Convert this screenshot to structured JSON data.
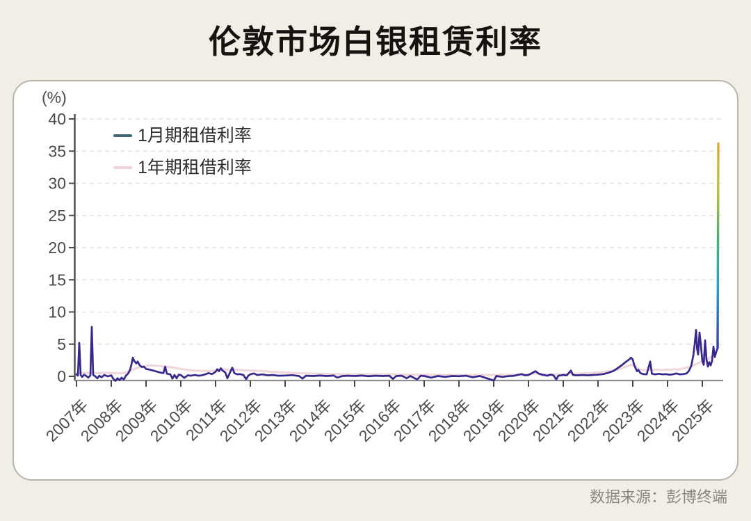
{
  "page": {
    "title": "伦敦市场白银租赁利率",
    "source_note": "数据来源：彭博终端"
  },
  "chart_data": {
    "type": "line",
    "title": "伦敦市场白银租赁利率",
    "xlabel": "",
    "ylabel": "(%)",
    "ylim": [
      -0.65,
      41.4
    ],
    "xlim": [
      2006.95,
      2025.6
    ],
    "grid": "horizontal-dashed",
    "legend_position": "top-left-inside",
    "y_ticks": [
      0,
      5,
      10,
      15,
      20,
      25,
      30,
      35,
      40
    ],
    "x_ticks": [
      "2007年",
      "2008年",
      "2009年",
      "2010年",
      "2011年",
      "2012年",
      "2013年",
      "2014年",
      "2015年",
      "2016年",
      "2017年",
      "2018年",
      "2019年",
      "2020年",
      "2021年",
      "2022年",
      "2023年",
      "2024年",
      "2025年"
    ],
    "x_tick_years": [
      2007,
      2008,
      2009,
      2010,
      2011,
      2012,
      2013,
      2014,
      2015,
      2016,
      2017,
      2018,
      2019,
      2020,
      2021,
      2022,
      2023,
      2024,
      2025
    ],
    "series": [
      {
        "name": "1月期租借利率",
        "color": "#36298d",
        "legend_color": "#44687a",
        "points": [
          [
            2007.0,
            0.3
          ],
          [
            2007.04,
            0.1
          ],
          [
            2007.08,
            5.2
          ],
          [
            2007.12,
            0.2
          ],
          [
            2007.16,
            -0.1
          ],
          [
            2007.22,
            0.25
          ],
          [
            2007.28,
            0.05
          ],
          [
            2007.34,
            -0.2
          ],
          [
            2007.4,
            0.15
          ],
          [
            2007.44,
            7.7
          ],
          [
            2007.48,
            0.2
          ],
          [
            2007.54,
            0.0
          ],
          [
            2007.6,
            -0.3
          ],
          [
            2007.66,
            0.1
          ],
          [
            2007.72,
            -0.15
          ],
          [
            2007.8,
            0.2
          ],
          [
            2007.9,
            0.0
          ],
          [
            2008.0,
            0.15
          ],
          [
            2008.06,
            -0.4
          ],
          [
            2008.12,
            -0.7
          ],
          [
            2008.18,
            -0.3
          ],
          [
            2008.24,
            -0.6
          ],
          [
            2008.3,
            -0.2
          ],
          [
            2008.36,
            -0.5
          ],
          [
            2008.42,
            0.1
          ],
          [
            2008.48,
            0.4
          ],
          [
            2008.54,
            1.0
          ],
          [
            2008.58,
            1.8
          ],
          [
            2008.62,
            2.9
          ],
          [
            2008.66,
            2.4
          ],
          [
            2008.72,
            2.0
          ],
          [
            2008.76,
            2.3
          ],
          [
            2008.82,
            1.7
          ],
          [
            2008.88,
            1.45
          ],
          [
            2008.94,
            1.5
          ],
          [
            2009.0,
            1.15
          ],
          [
            2009.1,
            1.05
          ],
          [
            2009.2,
            0.9
          ],
          [
            2009.3,
            0.75
          ],
          [
            2009.4,
            0.6
          ],
          [
            2009.5,
            0.5
          ],
          [
            2009.55,
            1.5
          ],
          [
            2009.6,
            0.4
          ],
          [
            2009.7,
            0.3
          ],
          [
            2009.76,
            -0.35
          ],
          [
            2009.82,
            0.2
          ],
          [
            2009.88,
            -0.3
          ],
          [
            2009.94,
            0.25
          ],
          [
            2010.0,
            0.2
          ],
          [
            2010.1,
            -0.25
          ],
          [
            2010.2,
            0.15
          ],
          [
            2010.3,
            0.1
          ],
          [
            2010.4,
            0.2
          ],
          [
            2010.5,
            0.1
          ],
          [
            2010.6,
            0.15
          ],
          [
            2010.7,
            0.3
          ],
          [
            2010.8,
            0.5
          ],
          [
            2010.9,
            0.35
          ],
          [
            2011.0,
            0.7
          ],
          [
            2011.05,
            1.1
          ],
          [
            2011.1,
            0.8
          ],
          [
            2011.15,
            1.25
          ],
          [
            2011.2,
            0.9
          ],
          [
            2011.28,
            0.6
          ],
          [
            2011.34,
            -0.3
          ],
          [
            2011.4,
            0.4
          ],
          [
            2011.48,
            1.35
          ],
          [
            2011.54,
            0.5
          ],
          [
            2011.62,
            0.3
          ],
          [
            2011.7,
            0.35
          ],
          [
            2011.8,
            0.2
          ],
          [
            2011.88,
            -0.45
          ],
          [
            2011.94,
            0.1
          ],
          [
            2012.0,
            0.3
          ],
          [
            2012.1,
            0.45
          ],
          [
            2012.2,
            0.2
          ],
          [
            2012.35,
            0.3
          ],
          [
            2012.5,
            0.15
          ],
          [
            2012.65,
            0.2
          ],
          [
            2012.8,
            0.1
          ],
          [
            2013.0,
            0.12
          ],
          [
            2013.2,
            0.18
          ],
          [
            2013.4,
            0.05
          ],
          [
            2013.5,
            -0.35
          ],
          [
            2013.6,
            0.1
          ],
          [
            2013.8,
            0.05
          ],
          [
            2014.0,
            0.12
          ],
          [
            2014.2,
            0.05
          ],
          [
            2014.4,
            0.12
          ],
          [
            2014.5,
            -0.2
          ],
          [
            2014.65,
            0.05
          ],
          [
            2014.8,
            0.1
          ],
          [
            2015.0,
            0.05
          ],
          [
            2015.2,
            0.12
          ],
          [
            2015.4,
            0.02
          ],
          [
            2015.6,
            0.1
          ],
          [
            2015.8,
            0.05
          ],
          [
            2016.0,
            0.1
          ],
          [
            2016.1,
            -0.4
          ],
          [
            2016.2,
            0.05
          ],
          [
            2016.35,
            0.1
          ],
          [
            2016.5,
            -0.3
          ],
          [
            2016.6,
            0.05
          ],
          [
            2016.8,
            -0.5
          ],
          [
            2016.9,
            0.1
          ],
          [
            2017.0,
            0.05
          ],
          [
            2017.2,
            -0.2
          ],
          [
            2017.4,
            0.05
          ],
          [
            2017.6,
            -0.1
          ],
          [
            2017.8,
            0.05
          ],
          [
            2018.0,
            0.02
          ],
          [
            2018.2,
            0.1
          ],
          [
            2018.4,
            -0.15
          ],
          [
            2018.6,
            0.05
          ],
          [
            2018.8,
            -0.3
          ],
          [
            2019.0,
            -0.65
          ],
          [
            2019.08,
            0.05
          ],
          [
            2019.25,
            -0.1
          ],
          [
            2019.4,
            0.02
          ],
          [
            2019.6,
            0.1
          ],
          [
            2019.8,
            0.35
          ],
          [
            2019.9,
            0.15
          ],
          [
            2020.0,
            0.2
          ],
          [
            2020.1,
            0.5
          ],
          [
            2020.2,
            0.8
          ],
          [
            2020.3,
            0.4
          ],
          [
            2020.42,
            0.2
          ],
          [
            2020.54,
            0.1
          ],
          [
            2020.64,
            0.25
          ],
          [
            2020.72,
            0.15
          ],
          [
            2020.8,
            -0.5
          ],
          [
            2020.86,
            0.1
          ],
          [
            2020.94,
            0.15
          ],
          [
            2021.0,
            0.2
          ],
          [
            2021.1,
            0.15
          ],
          [
            2021.22,
            0.9
          ],
          [
            2021.28,
            0.2
          ],
          [
            2021.4,
            0.15
          ],
          [
            2021.55,
            0.2
          ],
          [
            2021.7,
            0.15
          ],
          [
            2021.85,
            0.2
          ],
          [
            2022.0,
            0.25
          ],
          [
            2022.15,
            0.35
          ],
          [
            2022.3,
            0.55
          ],
          [
            2022.45,
            0.85
          ],
          [
            2022.6,
            1.4
          ],
          [
            2022.7,
            1.8
          ],
          [
            2022.8,
            2.25
          ],
          [
            2022.88,
            2.55
          ],
          [
            2022.95,
            2.9
          ],
          [
            2023.0,
            2.6
          ],
          [
            2023.04,
            1.8
          ],
          [
            2023.08,
            1.25
          ],
          [
            2023.12,
            0.8
          ],
          [
            2023.16,
            1.0
          ],
          [
            2023.22,
            0.5
          ],
          [
            2023.3,
            0.35
          ],
          [
            2023.4,
            0.3
          ],
          [
            2023.5,
            2.3
          ],
          [
            2023.55,
            0.4
          ],
          [
            2023.65,
            0.3
          ],
          [
            2023.75,
            0.4
          ],
          [
            2023.85,
            0.3
          ],
          [
            2023.95,
            0.35
          ],
          [
            2024.05,
            0.25
          ],
          [
            2024.15,
            0.3
          ],
          [
            2024.25,
            0.45
          ],
          [
            2024.35,
            0.3
          ],
          [
            2024.45,
            0.35
          ],
          [
            2024.55,
            0.45
          ],
          [
            2024.62,
            0.9
          ],
          [
            2024.68,
            1.6
          ],
          [
            2024.74,
            3.2
          ],
          [
            2024.78,
            5.0
          ],
          [
            2024.82,
            7.2
          ],
          [
            2024.85,
            4.2
          ],
          [
            2024.88,
            3.4
          ],
          [
            2024.92,
            6.8
          ],
          [
            2024.96,
            4.8
          ],
          [
            2025.0,
            2.4
          ],
          [
            2025.04,
            1.8
          ],
          [
            2025.08,
            5.6
          ],
          [
            2025.12,
            2.6
          ],
          [
            2025.16,
            1.5
          ],
          [
            2025.2,
            2.2
          ],
          [
            2025.24,
            1.7
          ],
          [
            2025.28,
            2.4
          ],
          [
            2025.32,
            4.6
          ],
          [
            2025.36,
            3.0
          ],
          [
            2025.4,
            3.8
          ],
          [
            2025.44,
            4.4
          ],
          [
            2025.46,
            36.2
          ]
        ]
      },
      {
        "name": "1年期租借利率",
        "color": "#f0d7da",
        "legend_color": "#ecd4d8",
        "points": [
          [
            2007.0,
            0.55
          ],
          [
            2007.2,
            0.5
          ],
          [
            2007.4,
            0.55
          ],
          [
            2007.6,
            0.5
          ],
          [
            2007.8,
            0.55
          ],
          [
            2008.0,
            0.5
          ],
          [
            2008.2,
            0.45
          ],
          [
            2008.4,
            0.55
          ],
          [
            2008.6,
            1.0
          ],
          [
            2008.8,
            1.4
          ],
          [
            2009.0,
            1.6
          ],
          [
            2009.1,
            1.7
          ],
          [
            2009.25,
            1.65
          ],
          [
            2009.4,
            1.6
          ],
          [
            2009.55,
            1.5
          ],
          [
            2009.7,
            1.4
          ],
          [
            2009.85,
            1.3
          ],
          [
            2010.0,
            1.15
          ],
          [
            2010.2,
            1.0
          ],
          [
            2010.4,
            0.9
          ],
          [
            2010.6,
            0.85
          ],
          [
            2010.8,
            0.8
          ],
          [
            2011.0,
            0.9
          ],
          [
            2011.1,
            1.05
          ],
          [
            2011.2,
            1.15
          ],
          [
            2011.3,
            1.05
          ],
          [
            2011.4,
            0.95
          ],
          [
            2011.5,
            1.1
          ],
          [
            2011.65,
            1.0
          ],
          [
            2011.8,
            0.95
          ],
          [
            2012.0,
            0.9
          ],
          [
            2012.2,
            0.85
          ],
          [
            2012.4,
            0.8
          ],
          [
            2012.6,
            0.7
          ],
          [
            2012.8,
            0.65
          ],
          [
            2013.0,
            0.6
          ],
          [
            2013.3,
            0.5
          ],
          [
            2013.6,
            0.45
          ],
          [
            2014.0,
            0.4
          ],
          [
            2014.5,
            0.35
          ],
          [
            2015.0,
            0.3
          ],
          [
            2015.5,
            0.3
          ],
          [
            2016.0,
            0.3
          ],
          [
            2016.5,
            0.25
          ],
          [
            2017.0,
            0.25
          ],
          [
            2017.5,
            0.2
          ],
          [
            2018.0,
            0.2
          ],
          [
            2018.5,
            0.2
          ],
          [
            2019.0,
            0.2
          ],
          [
            2019.5,
            0.25
          ],
          [
            2020.0,
            0.3
          ],
          [
            2020.2,
            0.45
          ],
          [
            2020.4,
            0.35
          ],
          [
            2020.6,
            0.3
          ],
          [
            2020.8,
            0.3
          ],
          [
            2021.0,
            0.35
          ],
          [
            2021.2,
            0.45
          ],
          [
            2021.4,
            0.4
          ],
          [
            2021.6,
            0.45
          ],
          [
            2021.8,
            0.5
          ],
          [
            2022.0,
            0.6
          ],
          [
            2022.2,
            0.7
          ],
          [
            2022.4,
            0.85
          ],
          [
            2022.6,
            1.1
          ],
          [
            2022.8,
            1.5
          ],
          [
            2022.95,
            1.8
          ],
          [
            2023.05,
            1.6
          ],
          [
            2023.15,
            1.2
          ],
          [
            2023.25,
            1.0
          ],
          [
            2023.4,
            0.95
          ],
          [
            2023.5,
            1.1
          ],
          [
            2023.6,
            1.0
          ],
          [
            2023.7,
            1.05
          ],
          [
            2023.8,
            0.95
          ],
          [
            2023.9,
            1.0
          ],
          [
            2024.0,
            1.05
          ],
          [
            2024.1,
            1.0
          ],
          [
            2024.2,
            1.1
          ],
          [
            2024.3,
            1.05
          ],
          [
            2024.4,
            1.15
          ],
          [
            2024.5,
            1.3
          ],
          [
            2024.6,
            1.4
          ],
          [
            2024.7,
            1.6
          ],
          [
            2024.8,
            1.85
          ],
          [
            2024.9,
            2.1
          ],
          [
            2025.0,
            2.3
          ],
          [
            2025.1,
            2.55
          ],
          [
            2025.2,
            2.8
          ],
          [
            2025.3,
            3.2
          ],
          [
            2025.4,
            3.8
          ],
          [
            2025.46,
            4.6
          ]
        ]
      }
    ],
    "final_spike": {
      "series": "1月期租借利率",
      "peak_value": 36.2,
      "gradient_top_to_bottom": [
        "#e2a93c",
        "#b9c53a",
        "#4fae70",
        "#2f9fc5",
        "#333d9c"
      ]
    },
    "colors": {
      "background": "#f1eee6",
      "card": "#ffffff",
      "card_border": "#b9b4aa",
      "gridline": "#e9dfde",
      "axis": "#4a4a4a",
      "x_axis_line": "#8f8f8f"
    }
  }
}
